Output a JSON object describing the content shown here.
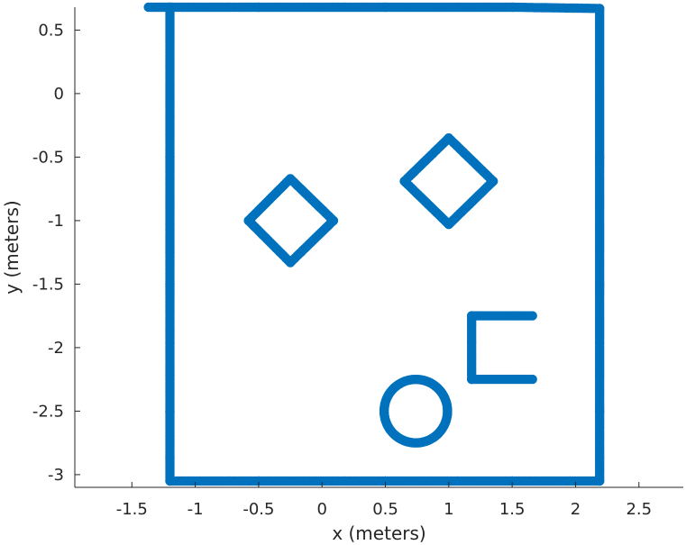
{
  "chart_data": {
    "type": "scatter",
    "title": "",
    "xlabel": "x (meters)",
    "ylabel": "y (meters)",
    "xlim": [
      -1.95,
      2.85
    ],
    "ylim": [
      -3.1,
      0.68
    ],
    "xticks": [
      -1.5,
      -1,
      -0.5,
      0,
      0.5,
      1,
      1.5,
      2,
      2.5
    ],
    "xtick_labels": [
      "-1.5",
      "-1",
      "-0.5",
      "0",
      "0.5",
      "1",
      "1.5",
      "2",
      "2.5"
    ],
    "yticks": [
      0.5,
      0,
      -0.5,
      -1,
      -1.5,
      -2,
      -2.5,
      -3
    ],
    "ytick_labels": [
      "0.5",
      "0",
      "-0.5",
      "-1",
      "-1.5",
      "-2",
      "-2.5",
      "-3"
    ],
    "grid": false,
    "legend": false,
    "marker_color": "#0072BD",
    "series": [
      {
        "shape": "wall-top",
        "points": [
          [
            -1.37,
            0.68
          ],
          [
            -1.2,
            0.68
          ],
          [
            -0.5,
            0.68
          ],
          [
            0.5,
            0.68
          ],
          [
            1.5,
            0.68
          ],
          [
            2.19,
            0.67
          ]
        ]
      },
      {
        "shape": "wall-left",
        "points": [
          [
            -1.2,
            0.68
          ],
          [
            -1.2,
            -0.5
          ],
          [
            -1.2,
            -1.5
          ],
          [
            -1.2,
            -2.5
          ],
          [
            -1.2,
            -3.05
          ]
        ]
      },
      {
        "shape": "wall-right",
        "points": [
          [
            2.19,
            0.67
          ],
          [
            2.19,
            -0.5
          ],
          [
            2.19,
            -1.5
          ],
          [
            2.19,
            -2.5
          ],
          [
            2.19,
            -3.05
          ]
        ]
      },
      {
        "shape": "wall-bottom",
        "points": [
          [
            -1.2,
            -3.05
          ],
          [
            -0.5,
            -3.05
          ],
          [
            0.5,
            -3.05
          ],
          [
            1.5,
            -3.05
          ],
          [
            2.19,
            -3.05
          ]
        ]
      },
      {
        "shape": "diamond-left",
        "points": [
          [
            -0.25,
            -0.67
          ],
          [
            0.09,
            -1.0
          ],
          [
            -0.25,
            -1.33
          ],
          [
            -0.58,
            -1.0
          ],
          [
            -0.25,
            -0.67
          ]
        ]
      },
      {
        "shape": "diamond-right",
        "points": [
          [
            1.0,
            -0.35
          ],
          [
            1.35,
            -0.69
          ],
          [
            1.0,
            -1.03
          ],
          [
            0.65,
            -0.69
          ],
          [
            1.0,
            -0.35
          ]
        ]
      },
      {
        "shape": "bracket",
        "points": [
          [
            1.66,
            -1.75
          ],
          [
            1.18,
            -1.75
          ],
          [
            1.18,
            -2.25
          ],
          [
            1.66,
            -2.25
          ]
        ]
      },
      {
        "shape": "arc",
        "arc": {
          "cx": 0.74,
          "cy": -2.5,
          "r": 0.25,
          "start_deg": -130,
          "end_deg": 228
        }
      }
    ]
  }
}
